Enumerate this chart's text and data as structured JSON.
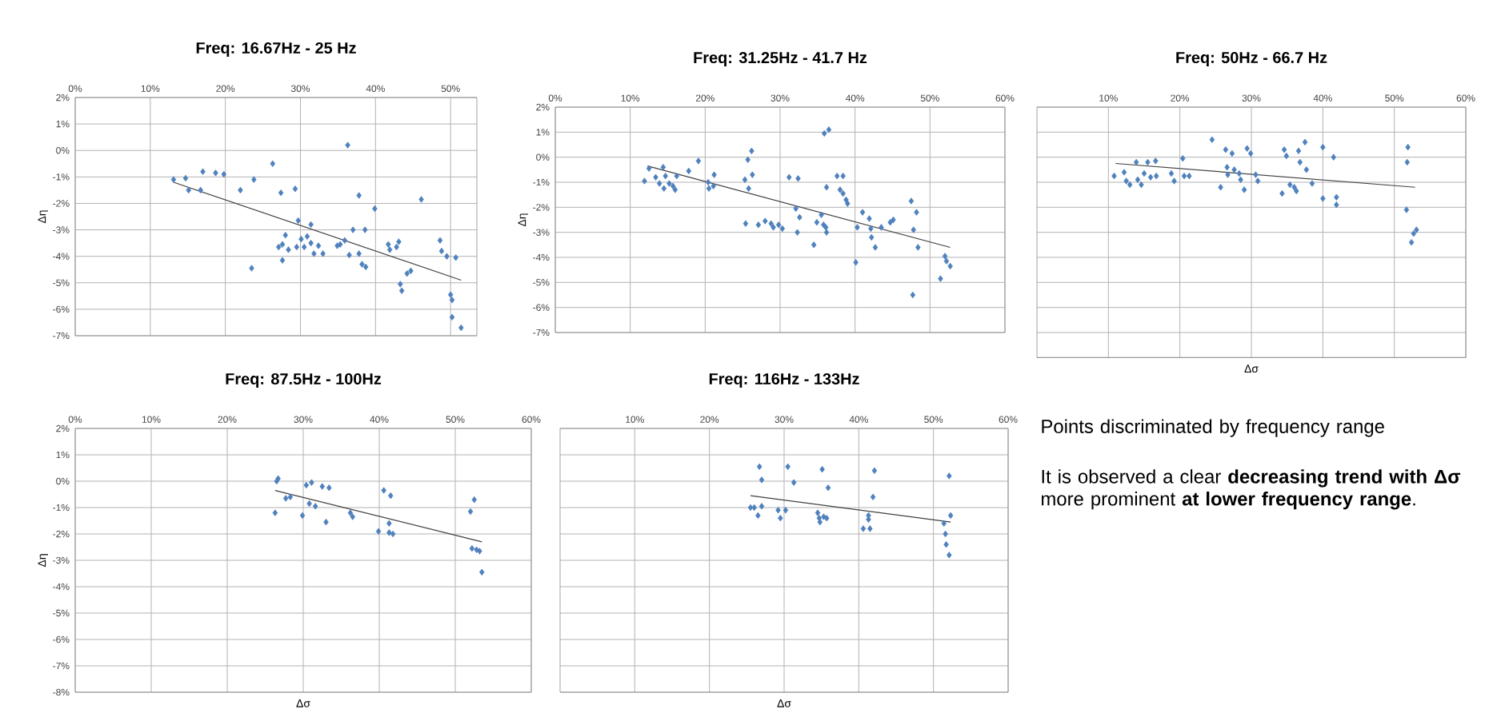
{
  "chart_data": [
    {
      "type": "scatter",
      "title": "Freq: 16.67Hz - 25 Hz",
      "ylabel": "Δη",
      "grid": true,
      "marker": "diamond",
      "xlim": [
        0,
        53.5
      ],
      "ylim": [
        -7,
        2
      ],
      "xticks": [
        {
          "value": 0,
          "label": "0%"
        },
        {
          "value": 10,
          "label": "10%"
        },
        {
          "value": 20,
          "label": "20%"
        },
        {
          "value": 30,
          "label": "30%"
        },
        {
          "value": 40,
          "label": "40%"
        },
        {
          "value": 50,
          "label": "50%"
        }
      ],
      "yticks": [
        {
          "value": -7,
          "label": "-7%"
        },
        {
          "value": -6,
          "label": "-6%"
        },
        {
          "value": -5,
          "label": "-5%"
        },
        {
          "value": -4,
          "label": "-4%"
        },
        {
          "value": -3,
          "label": "-3%"
        },
        {
          "value": -2,
          "label": "-2%"
        },
        {
          "value": -1,
          "label": "-1%"
        },
        {
          "value": 0,
          "label": "0%"
        },
        {
          "value": 1,
          "label": "1%"
        },
        {
          "value": 2,
          "label": "2%"
        }
      ],
      "series": [
        {
          "type": "scatter",
          "color": "#4f81bd",
          "x": [
            13.1,
            14.7,
            15.1,
            16.7,
            17.0,
            18.7,
            19.8,
            22.0,
            23.8,
            23.5,
            26.3,
            27.4,
            29.3,
            29.7,
            27.1,
            27.6,
            28.0,
            27.6,
            28.4,
            29.5,
            30.1,
            30.5,
            30.9,
            31.4,
            31.4,
            31.8,
            32.4,
            33.0,
            34.9,
            35.3,
            35.9,
            36.3,
            36.5,
            37.0,
            37.8,
            37.8,
            38.2,
            38.7,
            38.6,
            39.9,
            41.7,
            41.9,
            42.8,
            43.1,
            43.3,
            43.5,
            44.2,
            44.7,
            46.1,
            48.6,
            48.8,
            49.5,
            50.7,
            50.0,
            50.2,
            50.2,
            51.4
          ],
          "values": [
            -1.1,
            -1.05,
            -1.5,
            -1.5,
            -0.8,
            -0.85,
            -0.9,
            -1.5,
            -1.1,
            -4.45,
            -0.5,
            -1.6,
            -1.45,
            -2.65,
            -3.65,
            -3.55,
            -3.2,
            -4.15,
            -3.75,
            -3.65,
            -3.35,
            -3.65,
            -3.25,
            -3.5,
            -2.8,
            -3.9,
            -3.6,
            -3.9,
            -3.6,
            -3.55,
            -3.4,
            0.2,
            -3.95,
            -3.0,
            -3.9,
            -1.7,
            -4.3,
            -4.4,
            -3.0,
            -2.2,
            -3.55,
            -3.75,
            -3.65,
            -3.45,
            -5.05,
            -5.3,
            -4.65,
            -4.55,
            -1.85,
            -3.4,
            -3.8,
            -4.0,
            -4.05,
            -5.45,
            -5.65,
            -6.3,
            -6.7
          ]
        },
        {
          "type": "line",
          "color": "#404040",
          "marker": "none",
          "x": [
            13.1,
            51.4
          ],
          "values": [
            -1.2,
            -4.9
          ]
        }
      ]
    },
    {
      "type": "scatter",
      "title": "Freq: 31.25Hz - 41.7 Hz",
      "ylabel": "Δη",
      "grid": true,
      "marker": "diamond",
      "xlim": [
        0,
        60
      ],
      "ylim": [
        -7,
        2
      ],
      "xticks": [
        {
          "value": 0,
          "label": "0%"
        },
        {
          "value": 10,
          "label": "10%"
        },
        {
          "value": 20,
          "label": "20%"
        },
        {
          "value": 30,
          "label": "30%"
        },
        {
          "value": 40,
          "label": "40%"
        },
        {
          "value": 50,
          "label": "50%"
        },
        {
          "value": 60,
          "label": "60%"
        }
      ],
      "yticks": [
        {
          "value": -7,
          "label": "-7%"
        },
        {
          "value": -6,
          "label": "-6%"
        },
        {
          "value": -5,
          "label": "-5%"
        },
        {
          "value": -4,
          "label": "-4%"
        },
        {
          "value": -3,
          "label": "-3%"
        },
        {
          "value": -2,
          "label": "-2%"
        },
        {
          "value": -1,
          "label": "-1%"
        },
        {
          "value": 0,
          "label": "0%"
        },
        {
          "value": 1,
          "label": "1%"
        },
        {
          "value": 2,
          "label": "2%"
        }
      ],
      "series": [
        {
          "type": "scatter",
          "color": "#4f81bd",
          "x": [
            11.9,
            12.5,
            13.4,
            13.9,
            14.4,
            14.5,
            14.7,
            15.2,
            15.7,
            16.0,
            16.2,
            17.8,
            19.1,
            20.4,
            20.5,
            21.1,
            21.2,
            25.7,
            26.2,
            25.3,
            25.8,
            25.4,
            26.3,
            27.1,
            28.0,
            28.8,
            29.1,
            29.8,
            30.3,
            31.2,
            32.4,
            32.1,
            32.6,
            32.3,
            34.5,
            34.9,
            35.5,
            35.8,
            36.1,
            36.2,
            36.2,
            35.9,
            36.5,
            37.6,
            38.4,
            38.0,
            38.4,
            38.8,
            39.0,
            40.1,
            40.3,
            41.0,
            41.9,
            42.1,
            42.2,
            42.7,
            43.5,
            44.7,
            45.1,
            47.5,
            47.8,
            48.2,
            48.4,
            47.7,
            51.4,
            52.0,
            52.2,
            52.7
          ],
          "values": [
            -0.95,
            -0.45,
            -0.8,
            -1.05,
            -0.4,
            -1.25,
            -0.75,
            -1.05,
            -1.15,
            -1.3,
            -0.75,
            -0.55,
            -0.15,
            -1.0,
            -1.25,
            -1.15,
            -0.7,
            -0.1,
            0.25,
            -0.9,
            -1.25,
            -2.65,
            -0.7,
            -2.7,
            -2.55,
            -2.65,
            -2.8,
            -2.7,
            -2.85,
            -0.8,
            -0.85,
            -2.05,
            -2.4,
            -3.0,
            -3.5,
            -2.6,
            -2.3,
            -2.7,
            -2.8,
            -3.0,
            -1.2,
            0.95,
            1.1,
            -0.75,
            -0.75,
            -1.3,
            -1.45,
            -1.7,
            -1.85,
            -4.2,
            -2.8,
            -2.2,
            -2.45,
            -2.85,
            -3.2,
            -3.6,
            -2.8,
            -2.6,
            -2.5,
            -1.75,
            -2.9,
            -2.2,
            -3.6,
            -5.5,
            -4.85,
            -3.95,
            -4.15,
            -4.35
          ]
        },
        {
          "type": "line",
          "color": "#404040",
          "marker": "none",
          "x": [
            12.3,
            52.7
          ],
          "values": [
            -0.35,
            -3.6
          ]
        }
      ]
    },
    {
      "type": "scatter",
      "title": "Freq: 50Hz - 66.7 Hz",
      "xlabel": "Δσ",
      "grid": true,
      "marker": "diamond",
      "tick_labels": "x",
      "xlim": [
        0,
        60
      ],
      "ylim": [
        -8,
        2
      ],
      "xticks": [
        {
          "value": 10,
          "label": "10%"
        },
        {
          "value": 20,
          "label": "20%"
        },
        {
          "value": 30,
          "label": "30%"
        },
        {
          "value": 40,
          "label": "40%"
        },
        {
          "value": 50,
          "label": "50%"
        },
        {
          "value": 60,
          "label": "60%"
        }
      ],
      "yticks": [
        {
          "value": -8,
          "label": null
        },
        {
          "value": -7,
          "label": null
        },
        {
          "value": -6,
          "label": null
        },
        {
          "value": -5,
          "label": null
        },
        {
          "value": -4,
          "label": null
        },
        {
          "value": -3,
          "label": null
        },
        {
          "value": -2,
          "label": null
        },
        {
          "value": -1,
          "label": null
        },
        {
          "value": 0,
          "label": null
        },
        {
          "value": 1,
          "label": null
        },
        {
          "value": 2,
          "label": null
        }
      ],
      "series": [
        {
          "type": "scatter",
          "color": "#4f81bd",
          "x": [
            10.8,
            12.2,
            12.5,
            13.0,
            13.9,
            14.1,
            14.6,
            15.0,
            15.5,
            15.9,
            16.6,
            16.7,
            18.8,
            19.2,
            20.4,
            20.6,
            21.3,
            24.5,
            25.7,
            26.4,
            26.6,
            26.7,
            27.3,
            27.6,
            28.3,
            28.5,
            29.0,
            29.4,
            29.9,
            30.6,
            30.9,
            34.3,
            34.6,
            34.9,
            35.4,
            36.0,
            36.3,
            36.6,
            36.8,
            37.5,
            37.7,
            38.5,
            40.0,
            40.0,
            41.5,
            41.9,
            41.9,
            51.9,
            51.8,
            51.7,
            52.4,
            52.7,
            53.1
          ],
          "values": [
            -0.75,
            -0.6,
            -0.95,
            -1.1,
            -0.2,
            -0.9,
            -1.1,
            -0.65,
            -0.2,
            -0.8,
            -0.15,
            -0.75,
            -0.65,
            -0.95,
            -0.05,
            -0.75,
            -0.75,
            0.7,
            -1.2,
            0.3,
            -0.4,
            -0.7,
            0.15,
            -0.5,
            -0.65,
            -0.9,
            -1.3,
            0.35,
            0.15,
            -0.7,
            -0.95,
            -1.45,
            0.3,
            0.05,
            -1.1,
            -1.2,
            -1.35,
            0.25,
            -0.2,
            0.6,
            -0.5,
            -1.05,
            0.4,
            -1.65,
            0.0,
            -1.6,
            -1.9,
            0.4,
            -0.2,
            -2.1,
            -3.4,
            -3.05,
            -2.9
          ]
        },
        {
          "type": "line",
          "color": "#404040",
          "marker": "none",
          "x": [
            11.0,
            52.9
          ],
          "values": [
            -0.25,
            -1.2
          ]
        }
      ]
    },
    {
      "type": "scatter",
      "title": "Freq: 87.5Hz - 100Hz",
      "xlabel": "Δσ",
      "ylabel": "Δη",
      "grid": true,
      "marker": "diamond",
      "xlim": [
        0,
        60
      ],
      "ylim": [
        -8,
        2
      ],
      "xticks": [
        {
          "value": 0,
          "label": "0%"
        },
        {
          "value": 10,
          "label": "10%"
        },
        {
          "value": 20,
          "label": "20%"
        },
        {
          "value": 30,
          "label": "30%"
        },
        {
          "value": 40,
          "label": "40%"
        },
        {
          "value": 50,
          "label": "50%"
        },
        {
          "value": 60,
          "label": "60%"
        }
      ],
      "yticks": [
        {
          "value": -8,
          "label": "-8%"
        },
        {
          "value": -7,
          "label": "-7%"
        },
        {
          "value": -6,
          "label": "-6%"
        },
        {
          "value": -5,
          "label": "-5%"
        },
        {
          "value": -4,
          "label": "-4%"
        },
        {
          "value": -3,
          "label": "-3%"
        },
        {
          "value": -2,
          "label": "-2%"
        },
        {
          "value": -1,
          "label": "-1%"
        },
        {
          "value": 0,
          "label": "0%"
        },
        {
          "value": 1,
          "label": "1%"
        },
        {
          "value": 2,
          "label": "2%"
        }
      ],
      "series": [
        {
          "type": "scatter",
          "color": "#4f81bd",
          "x": [
            26.3,
            26.5,
            26.7,
            27.7,
            28.3,
            29.9,
            30.4,
            31.1,
            30.8,
            31.6,
            32.5,
            33.4,
            33.0,
            36.2,
            36.5,
            39.9,
            40.6,
            41.5,
            41.3,
            41.3,
            41.8,
            52.0,
            52.5,
            52.2,
            52.8,
            53.2,
            53.5
          ],
          "values": [
            -1.2,
            0.0,
            0.1,
            -0.65,
            -0.6,
            -1.3,
            -0.15,
            -0.05,
            -0.85,
            -0.95,
            -0.2,
            -0.25,
            -1.55,
            -1.2,
            -1.35,
            -1.9,
            -0.35,
            -0.55,
            -1.6,
            -1.95,
            -2.0,
            -1.15,
            -0.7,
            -2.55,
            -2.6,
            -2.65,
            -3.45
          ]
        },
        {
          "type": "line",
          "color": "#404040",
          "marker": "none",
          "x": [
            26.3,
            53.5
          ],
          "values": [
            -0.35,
            -2.3
          ]
        }
      ]
    },
    {
      "type": "scatter",
      "title": "Freq: 116Hz - 133Hz",
      "xlabel": "Δσ",
      "grid": true,
      "marker": "diamond",
      "tick_labels": "x",
      "xlim": [
        0,
        60
      ],
      "ylim": [
        -8,
        2
      ],
      "xticks": [
        {
          "value": 10,
          "label": "10%"
        },
        {
          "value": 20,
          "label": "20%"
        },
        {
          "value": 30,
          "label": "30%"
        },
        {
          "value": 40,
          "label": "40%"
        },
        {
          "value": 50,
          "label": "50%"
        },
        {
          "value": 60,
          "label": "60%"
        }
      ],
      "yticks": [
        {
          "value": -8,
          "label": null
        },
        {
          "value": -7,
          "label": null
        },
        {
          "value": -6,
          "label": null
        },
        {
          "value": -5,
          "label": null
        },
        {
          "value": -4,
          "label": null
        },
        {
          "value": -3,
          "label": null
        },
        {
          "value": -2,
          "label": null
        },
        {
          "value": -1,
          "label": null
        },
        {
          "value": 0,
          "label": null
        },
        {
          "value": 1,
          "label": null
        },
        {
          "value": 2,
          "label": null
        }
      ],
      "series": [
        {
          "type": "scatter",
          "color": "#4f81bd",
          "x": [
            25.5,
            26.0,
            26.5,
            26.7,
            27.0,
            27.0,
            29.2,
            29.5,
            30.2,
            30.5,
            31.3,
            34.5,
            34.7,
            34.8,
            35.1,
            35.3,
            35.7,
            35.9,
            40.6,
            41.3,
            41.3,
            41.5,
            41.9,
            42.1,
            51.4,
            51.6,
            51.7,
            52.1,
            52.1,
            52.3
          ],
          "values": [
            -1.0,
            -1.0,
            -1.3,
            0.55,
            0.05,
            -0.95,
            -1.1,
            -1.4,
            -1.1,
            0.55,
            -0.05,
            -1.2,
            -1.4,
            -1.55,
            0.45,
            -1.35,
            -1.4,
            -0.25,
            -1.8,
            -1.3,
            -1.45,
            -1.8,
            -0.6,
            0.4,
            -1.6,
            -2.0,
            -2.4,
            -2.8,
            0.2,
            -1.3
          ]
        },
        {
          "type": "line",
          "color": "#404040",
          "marker": "none",
          "x": [
            25.5,
            52.3
          ],
          "values": [
            -0.55,
            -1.55
          ]
        }
      ]
    },
    {
      "type": "other",
      "annotations": [
        "Points discriminated by frequency range",
        "It is observed a clear **decreasing trend with Δσ** more prominent **at lower frequency range**."
      ]
    }
  ]
}
